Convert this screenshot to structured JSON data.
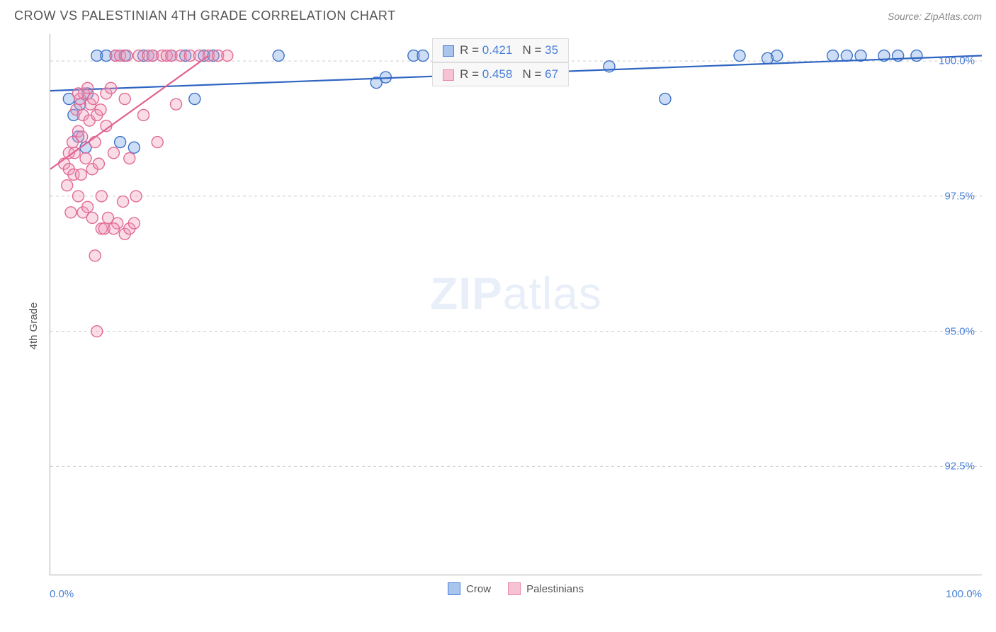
{
  "header": {
    "title": "CROW VS PALESTINIAN 4TH GRADE CORRELATION CHART",
    "source": "Source: ZipAtlas.com"
  },
  "yLabel": "4th Grade",
  "watermark": {
    "zip": "ZIP",
    "atlas": "atlas"
  },
  "chart": {
    "type": "scatter",
    "background_color": "#ffffff",
    "grid_color": "#cccccc",
    "axis_color": "#aaaaaa",
    "xlim": [
      0,
      100
    ],
    "ylim": [
      90.5,
      100.5
    ],
    "x_ticks_major": [
      0,
      100
    ],
    "x_ticks_minor": [
      8.3,
      16.6,
      25,
      33.3,
      41.6,
      50,
      58.3,
      66.6,
      75,
      83.3,
      91.6
    ],
    "y_ticks": [
      92.5,
      95.0,
      97.5,
      100.0
    ],
    "x_tick_labels": {
      "0": "0.0%",
      "100": "100.0%"
    },
    "y_tick_labels": {
      "92.5": "92.5%",
      "95.0": "95.0%",
      "97.5": "97.5%",
      "100.0": "100.0%"
    },
    "marker_radius": 8,
    "marker_stroke_width": 1.4,
    "marker_fill_opacity": 0.35,
    "trend_width": 2.2,
    "label_fontsize": 15,
    "label_color": "#4a7fd6",
    "series": [
      {
        "name": "Crow",
        "swatch_fill": "#a9c5ee",
        "swatch_stroke": "#4a7fd6",
        "marker_fill": "#6f9ee3",
        "marker_stroke": "#3d72c7",
        "trend_color": "#2f65c2",
        "R": "0.421",
        "N": "35",
        "trend": {
          "x1": 0,
          "y1": 99.45,
          "x2": 100,
          "y2": 100.1
        },
        "points": [
          [
            2.0,
            99.3
          ],
          [
            2.5,
            99.0
          ],
          [
            3.0,
            98.6
          ],
          [
            3.2,
            99.2
          ],
          [
            3.8,
            98.4
          ],
          [
            4.0,
            99.4
          ],
          [
            5.0,
            100.1
          ],
          [
            6.0,
            100.1
          ],
          [
            7.0,
            100.1
          ],
          [
            7.5,
            98.5
          ],
          [
            8.0,
            100.1
          ],
          [
            9.0,
            98.4
          ],
          [
            10.0,
            100.1
          ],
          [
            11.0,
            100.1
          ],
          [
            13.0,
            100.1
          ],
          [
            14.5,
            100.1
          ],
          [
            15.5,
            99.3
          ],
          [
            16.5,
            100.1
          ],
          [
            17.5,
            100.1
          ],
          [
            24.5,
            100.1
          ],
          [
            35.0,
            99.6
          ],
          [
            36.0,
            99.7
          ],
          [
            39.0,
            100.1
          ],
          [
            40.0,
            100.1
          ],
          [
            60.0,
            99.9
          ],
          [
            66.0,
            99.3
          ],
          [
            74.0,
            100.1
          ],
          [
            77.0,
            100.05
          ],
          [
            78.0,
            100.1
          ],
          [
            84.0,
            100.1
          ],
          [
            85.5,
            100.1
          ],
          [
            87.0,
            100.1
          ],
          [
            89.5,
            100.1
          ],
          [
            91.0,
            100.1
          ],
          [
            93.0,
            100.1
          ]
        ]
      },
      {
        "name": "Palestinians",
        "swatch_fill": "#f7c3d4",
        "swatch_stroke": "#e886ab",
        "marker_fill": "#f19bb9",
        "marker_stroke": "#e06b95",
        "trend_color": "#e06291",
        "R": "0.458",
        "N": "67",
        "trend": {
          "x1": 0,
          "y1": 98.0,
          "x2": 17,
          "y2": 100.1
        },
        "points": [
          [
            1.5,
            98.1
          ],
          [
            1.8,
            97.7
          ],
          [
            2.0,
            98.3
          ],
          [
            2.0,
            98.0
          ],
          [
            2.2,
            97.2
          ],
          [
            2.4,
            98.5
          ],
          [
            2.5,
            97.9
          ],
          [
            2.6,
            98.3
          ],
          [
            2.8,
            99.1
          ],
          [
            3.0,
            98.7
          ],
          [
            3.0,
            97.5
          ],
          [
            3.2,
            99.3
          ],
          [
            3.3,
            97.9
          ],
          [
            3.4,
            98.6
          ],
          [
            3.5,
            99.0
          ],
          [
            3.5,
            97.2
          ],
          [
            3.6,
            99.4
          ],
          [
            3.8,
            98.2
          ],
          [
            4.0,
            99.5
          ],
          [
            4.0,
            97.3
          ],
          [
            4.2,
            98.9
          ],
          [
            4.3,
            99.2
          ],
          [
            4.5,
            98.0
          ],
          [
            4.5,
            97.1
          ],
          [
            4.6,
            99.3
          ],
          [
            4.8,
            98.5
          ],
          [
            4.8,
            96.4
          ],
          [
            5.0,
            99.0
          ],
          [
            5.0,
            95.0
          ],
          [
            5.2,
            98.1
          ],
          [
            5.4,
            99.1
          ],
          [
            5.5,
            97.5
          ],
          [
            5.5,
            96.9
          ],
          [
            6.0,
            99.4
          ],
          [
            6.0,
            98.8
          ],
          [
            6.2,
            97.1
          ],
          [
            6.5,
            99.5
          ],
          [
            6.8,
            98.3
          ],
          [
            7.0,
            100.1
          ],
          [
            7.2,
            97.0
          ],
          [
            7.5,
            100.1
          ],
          [
            7.8,
            97.4
          ],
          [
            8.0,
            99.3
          ],
          [
            8.0,
            96.8
          ],
          [
            8.2,
            100.1
          ],
          [
            8.5,
            98.2
          ],
          [
            8.5,
            96.9
          ],
          [
            9.0,
            97.0
          ],
          [
            9.2,
            97.5
          ],
          [
            9.5,
            100.1
          ],
          [
            10.0,
            99.0
          ],
          [
            10.5,
            100.1
          ],
          [
            11.0,
            100.1
          ],
          [
            11.5,
            98.5
          ],
          [
            12.0,
            100.1
          ],
          [
            12.5,
            100.1
          ],
          [
            13.0,
            100.1
          ],
          [
            13.5,
            99.2
          ],
          [
            14.0,
            100.1
          ],
          [
            15.0,
            100.1
          ],
          [
            16.0,
            100.1
          ],
          [
            17.0,
            100.1
          ],
          [
            18.0,
            100.1
          ],
          [
            19.0,
            100.1
          ],
          [
            5.8,
            96.9
          ],
          [
            6.8,
            96.9
          ],
          [
            3.0,
            99.4
          ]
        ]
      }
    ]
  },
  "legendBottom": [
    {
      "label": "Crow",
      "fill": "#a9c5ee",
      "stroke": "#4a7fd6"
    },
    {
      "label": "Palestinians",
      "fill": "#f7c3d4",
      "stroke": "#e886ab"
    }
  ],
  "infoBox": {
    "R_label": "R = ",
    "N_label": "N = "
  }
}
